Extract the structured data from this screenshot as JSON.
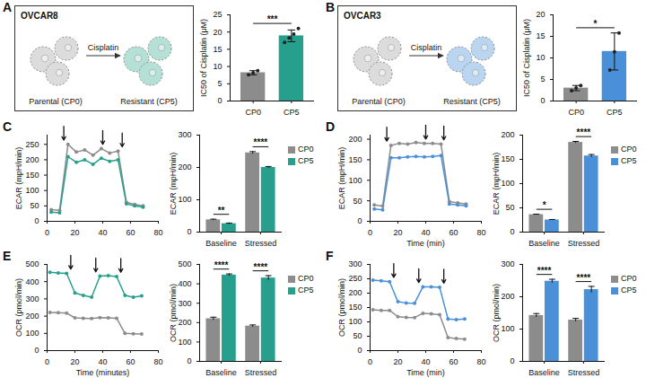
{
  "diagrams": [
    {
      "panel": "A",
      "title": "OVCAR8",
      "start": "Parental (CP0)",
      "arrow": "Cisplatin",
      "end": "Resistant (CP5)",
      "colors": [
        "#dcdcdc",
        "#b5e0d6"
      ]
    },
    {
      "panel": "B",
      "title": "OVCAR3",
      "start": "Parental (CP0)",
      "arrow": "Cisplatin",
      "end": "Resistant (CP5)",
      "colors": [
        "#dcdcdc",
        "#b9d5ef"
      ]
    }
  ],
  "chart_data": [
    {
      "type": "bar",
      "categories": [
        "CP0",
        "CP5"
      ],
      "values": [
        8.2,
        18.9
      ],
      "errors": [
        0.6,
        1.7
      ],
      "points": [
        [
          7.6,
          8.2,
          8.8
        ],
        [
          17.0,
          18.3,
          19.4,
          21.0
        ]
      ],
      "colors": [
        "#8c8c8c",
        "#26a08c"
      ],
      "y_label": "IC50 of Cisplatin (μM)",
      "ylim": [
        0,
        25
      ],
      "yticks": [
        0,
        5,
        10,
        15,
        20,
        25
      ],
      "annotations": [
        {
          "text": "***",
          "from": "CP0",
          "to": "CP5"
        }
      ]
    },
    {
      "type": "bar",
      "categories": [
        "CP0",
        "CP5"
      ],
      "values": [
        3.0,
        11.5
      ],
      "errors": [
        0.6,
        4.3
      ],
      "points": [
        [
          2.4,
          3.0,
          3.6
        ],
        [
          7.2,
          11.4,
          15.8
        ]
      ],
      "colors": [
        "#8c8c8c",
        "#4a90d9"
      ],
      "y_label": "IC50 of Cisplatin (μM)",
      "ylim": [
        0,
        20
      ],
      "yticks": [
        0,
        5,
        10,
        15,
        20
      ],
      "annotations": [
        {
          "text": "*",
          "from": "CP0",
          "to": "CP5"
        }
      ]
    },
    {
      "panel": "C",
      "type": "line",
      "marker": "circle",
      "x": [
        3,
        9,
        15,
        21,
        27,
        33,
        39,
        45,
        51,
        57,
        63,
        69
      ],
      "series": [
        {
          "name": "CP0",
          "color": "#8c8c8c",
          "values": [
            38,
            36,
            250,
            225,
            232,
            215,
            236,
            222,
            228,
            62,
            55,
            50
          ]
        },
        {
          "name": "CP5",
          "color": "#26a08c",
          "values": [
            30,
            28,
            210,
            192,
            200,
            185,
            205,
            195,
            200,
            57,
            50,
            46
          ]
        }
      ],
      "y_label": "ECAR (mpH/min)",
      "xlim": [
        0,
        80
      ],
      "xticks": [
        0,
        20,
        40,
        60,
        80
      ],
      "ylim": [
        0,
        280
      ],
      "yticks": [
        0,
        50,
        100,
        150,
        200,
        250
      ],
      "arrows": [
        12,
        40,
        54
      ]
    },
    {
      "type": "bar",
      "categories": [
        "Baseline",
        "Stressed"
      ],
      "series": [
        {
          "name": "CP0",
          "color": "#8c8c8c",
          "values": [
            38,
            245
          ],
          "errors": [
            2,
            4
          ]
        },
        {
          "name": "CP5",
          "color": "#26a08c",
          "values": [
            26,
            200
          ],
          "errors": [
            2,
            3
          ]
        }
      ],
      "y_label": "ECAR (mpH/min)",
      "ylim": [
        0,
        300
      ],
      "yticks": [
        0,
        100,
        200,
        300
      ],
      "legend": "right",
      "annotations": [
        {
          "text": "**",
          "category": "Baseline"
        },
        {
          "text": "****",
          "category": "Stressed"
        }
      ]
    },
    {
      "panel": "D",
      "type": "line",
      "marker": "circle",
      "x": [
        3,
        9,
        15,
        21,
        27,
        33,
        39,
        45,
        51,
        57,
        63,
        69
      ],
      "series": [
        {
          "name": "CP0",
          "color": "#8c8c8c",
          "values": [
            40,
            37,
            185,
            190,
            188,
            192,
            190,
            190,
            188,
            48,
            45,
            42
          ]
        },
        {
          "name": "CP5",
          "color": "#4a90d9",
          "values": [
            30,
            28,
            155,
            155,
            157,
            158,
            157,
            158,
            160,
            42,
            40,
            38
          ]
        }
      ],
      "y_label": "ECAR (mpH/min)",
      "x_label": "Time (min)",
      "xlim": [
        0,
        80
      ],
      "xticks": [
        0,
        20,
        40,
        60,
        80
      ],
      "ylim": [
        0,
        210
      ],
      "yticks": [
        0,
        50,
        100,
        150,
        200
      ],
      "arrows": [
        12,
        40,
        53
      ]
    },
    {
      "type": "bar",
      "categories": [
        "Baseline",
        "Stressed"
      ],
      "series": [
        {
          "name": "CP0",
          "color": "#8c8c8c",
          "values": [
            36,
            185
          ],
          "errors": [
            1,
            2
          ]
        },
        {
          "name": "CP5",
          "color": "#4a90d9",
          "values": [
            25,
            157
          ],
          "errors": [
            1,
            3
          ]
        }
      ],
      "y_label": "ECAR (mpH/min)",
      "ylim": [
        0,
        200
      ],
      "yticks": [
        0,
        50,
        100,
        150,
        200
      ],
      "legend": "right",
      "annotations": [
        {
          "text": "*",
          "category": "Baseline"
        },
        {
          "text": "****",
          "category": "Stressed"
        }
      ]
    },
    {
      "panel": "E",
      "type": "line",
      "marker": "circle",
      "x": [
        2,
        8,
        14,
        20,
        26,
        32,
        38,
        44,
        50,
        56,
        62,
        68
      ],
      "series": [
        {
          "name": "CP0",
          "color": "#8c8c8c",
          "values": [
            222,
            220,
            218,
            190,
            188,
            186,
            192,
            190,
            188,
            100,
            98,
            96
          ]
        },
        {
          "name": "CP5",
          "color": "#26a08c",
          "values": [
            455,
            450,
            448,
            335,
            320,
            310,
            432,
            435,
            430,
            320,
            310,
            318
          ]
        }
      ],
      "y_label": "OCR (pmol/min)",
      "x_label": "Time (minutes)",
      "xlim": [
        0,
        80
      ],
      "xticks": [
        0,
        20,
        40,
        60,
        80
      ],
      "ylim": [
        0,
        500
      ],
      "yticks": [
        0,
        100,
        200,
        300,
        400,
        500
      ],
      "arrows": [
        17,
        35,
        53
      ]
    },
    {
      "type": "bar",
      "categories": [
        "Baseline",
        "Stressed"
      ],
      "series": [
        {
          "name": "CP0",
          "color": "#8c8c8c",
          "values": [
            220,
            182
          ],
          "errors": [
            8,
            6
          ]
        },
        {
          "name": "CP5",
          "color": "#26a08c",
          "values": [
            445,
            430
          ],
          "errors": [
            6,
            12
          ]
        }
      ],
      "y_label": "OCR (pmol/min)",
      "ylim": [
        0,
        500
      ],
      "yticks": [
        0,
        100,
        200,
        300,
        400,
        500
      ],
      "legend": "right",
      "annotations": [
        {
          "text": "****",
          "category": "Baseline"
        },
        {
          "text": "****",
          "category": "Stressed"
        }
      ]
    },
    {
      "panel": "F",
      "type": "line",
      "marker": "circle",
      "x": [
        2,
        8,
        14,
        20,
        26,
        32,
        38,
        44,
        50,
        56,
        62,
        68
      ],
      "series": [
        {
          "name": "CP0",
          "color": "#8c8c8c",
          "values": [
            142,
            140,
            140,
            118,
            116,
            115,
            130,
            128,
            125,
            45,
            42,
            40
          ]
        },
        {
          "name": "CP5",
          "color": "#4a90d9",
          "values": [
            245,
            243,
            240,
            170,
            166,
            165,
            222,
            222,
            220,
            110,
            108,
            110
          ]
        }
      ],
      "y_label": "OCR (pmol/min)",
      "x_label": "Time (min)",
      "xlim": [
        0,
        80
      ],
      "xticks": [
        0,
        20,
        40,
        60,
        80
      ],
      "ylim": [
        0,
        300
      ],
      "yticks": [
        0,
        50,
        100,
        150,
        200,
        250,
        300
      ],
      "arrows": [
        17,
        35,
        53
      ]
    },
    {
      "type": "bar",
      "categories": [
        "Baseline",
        "Stressed"
      ],
      "series": [
        {
          "name": "CP0",
          "color": "#8c8c8c",
          "values": [
            142,
            128
          ],
          "errors": [
            6,
            5
          ]
        },
        {
          "name": "CP5",
          "color": "#4a90d9",
          "values": [
            248,
            222
          ],
          "errors": [
            6,
            10
          ]
        }
      ],
      "y_label": "OCR (pmol/min)",
      "ylim": [
        0,
        300
      ],
      "yticks": [
        0,
        100,
        200,
        300
      ],
      "legend": "right",
      "annotations": [
        {
          "text": "****",
          "category": "Baseline"
        },
        {
          "text": "****",
          "category": "Stressed"
        }
      ]
    }
  ]
}
